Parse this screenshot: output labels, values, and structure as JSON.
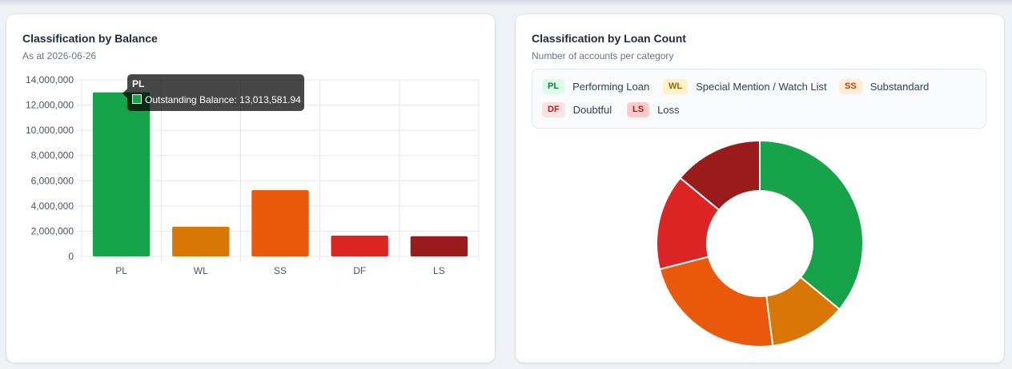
{
  "left_card": {
    "title": "Classification by Balance",
    "subtitle": "As at 2026-06-26"
  },
  "right_card": {
    "title": "Classification by Loan Count",
    "subtitle": "Number of accounts per category"
  },
  "tooltip": {
    "title": "PL",
    "text": "Outstanding Balance: 13,013,581.94"
  },
  "legend": [
    {
      "code": "PL",
      "label": "Performing Loan",
      "text_color": "#15803d",
      "bg_color": "#dcfce7"
    },
    {
      "code": "WL",
      "label": "Special Mention / Watch List",
      "text_color": "#a16207",
      "bg_color": "#fef3c7"
    },
    {
      "code": "SS",
      "label": "Substandard",
      "text_color": "#c2410c",
      "bg_color": "#ffedd5"
    },
    {
      "code": "DF",
      "label": "Doubtful",
      "text_color": "#b91c1c",
      "bg_color": "#fee2e2"
    },
    {
      "code": "LS",
      "label": "Loss",
      "text_color": "#991b1b",
      "bg_color": "#fecaca"
    }
  ],
  "chart_data": [
    {
      "type": "bar",
      "categories": [
        "PL",
        "WL",
        "SS",
        "DF",
        "LS"
      ],
      "series": [
        {
          "name": "Outstanding Balance",
          "values": [
            13013581.94,
            2350000,
            5250000,
            1650000,
            1600000
          ],
          "colors": [
            "#16a34a",
            "#d97706",
            "#ea580c",
            "#dc2626",
            "#991b1b"
          ]
        }
      ],
      "ylim": [
        0,
        14000000
      ],
      "yticks": [
        0,
        2000000,
        4000000,
        6000000,
        8000000,
        10000000,
        12000000,
        14000000
      ],
      "ytick_labels": [
        "0",
        "2,000,000",
        "4,000,000",
        "6,000,000",
        "8,000,000",
        "10,000,000",
        "12,000,000",
        "14,000,000"
      ],
      "grid": true
    },
    {
      "type": "pie",
      "donut": true,
      "categories": [
        "PL",
        "WL",
        "SS",
        "DF",
        "LS"
      ],
      "values": [
        36,
        12,
        23,
        15,
        14
      ],
      "colors": [
        "#16a34a",
        "#d97706",
        "#ea580c",
        "#dc2626",
        "#991b1b"
      ]
    }
  ]
}
